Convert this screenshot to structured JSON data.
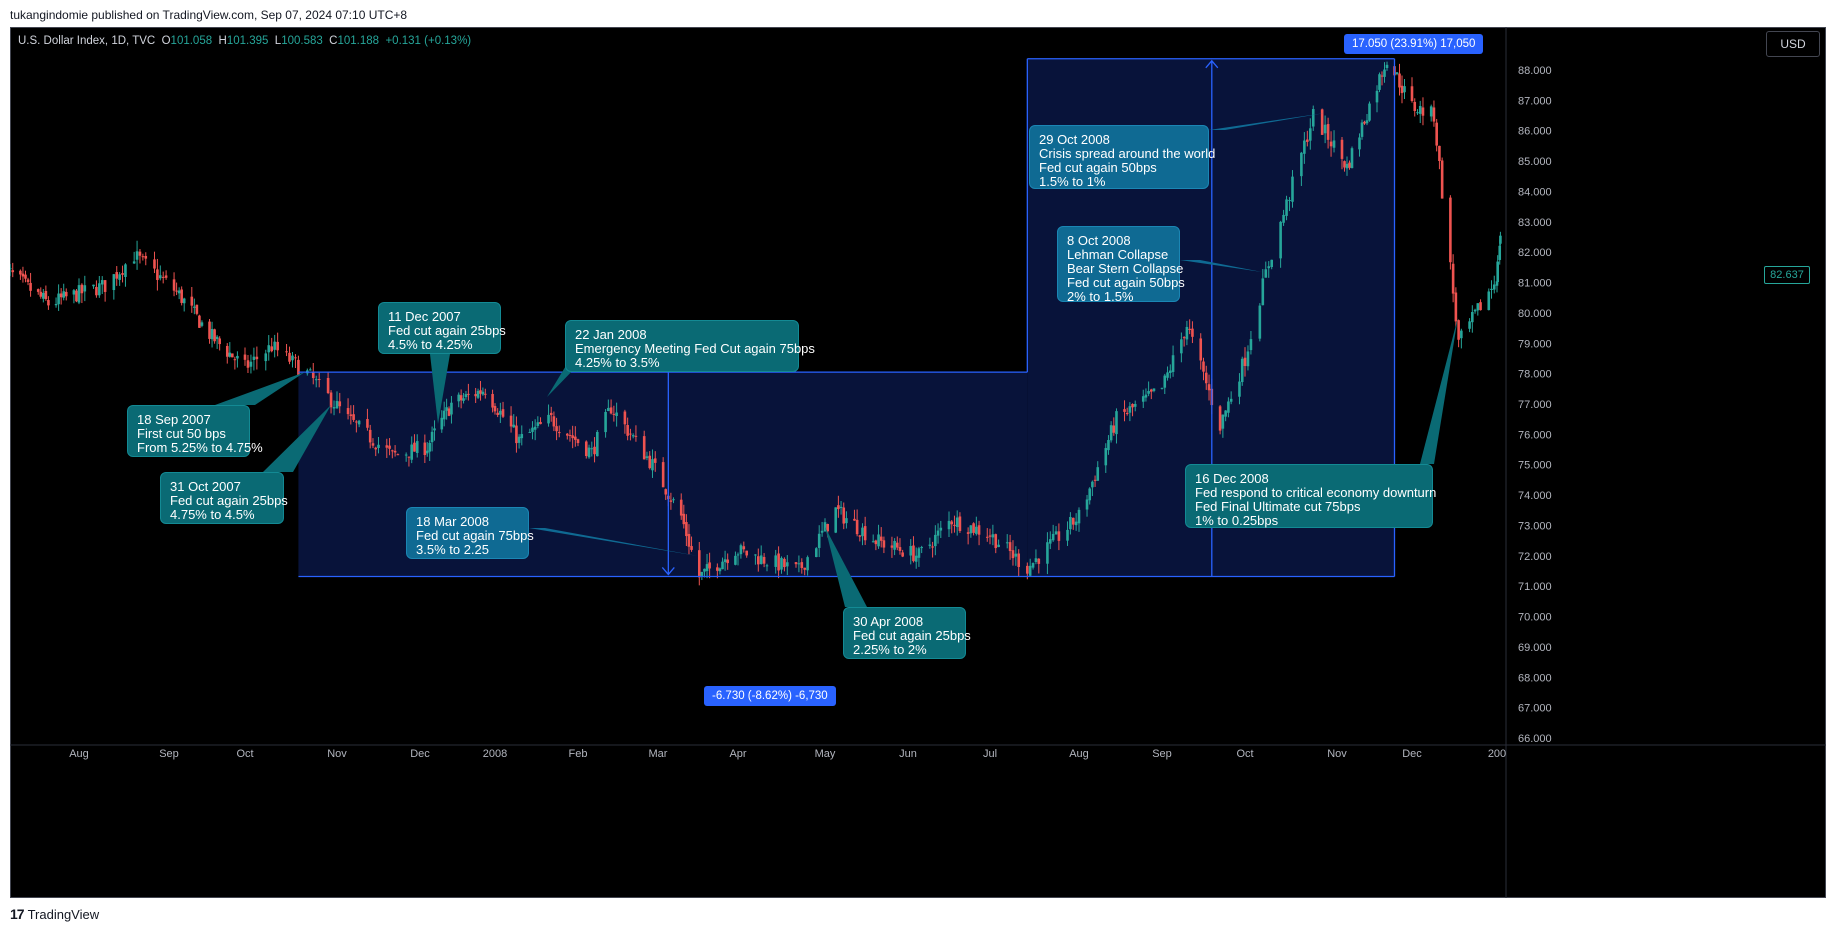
{
  "header": "tukangindomie published on TradingView.com, Sep 07, 2024 07:10 UTC+8",
  "footer": {
    "brand": "TradingView",
    "logo_text": "17"
  },
  "legend": {
    "symbol": "U.S. Dollar Index, 1D, TVC",
    "o_label": "O",
    "o": "101.058",
    "h_label": "H",
    "h": "101.395",
    "l_label": "L",
    "l": "100.583",
    "c_label": "C",
    "c": "101.188",
    "change": "+0.131 (+0.13%)"
  },
  "currency": "USD",
  "current_price": "82.637",
  "colors": {
    "up": "#26a69a",
    "down": "#ef5350",
    "measure": "#2962ff",
    "note_teal": "#0a6a74",
    "note_blue": "#0f6a93"
  },
  "chart_data": {
    "type": "candlestick",
    "ylim": [
      66,
      88.8
    ],
    "y_ticks": [
      "88.000",
      "87.000",
      "86.000",
      "85.000",
      "84.000",
      "83.000",
      "82.000",
      "81.000",
      "80.000",
      "79.000",
      "78.000",
      "77.000",
      "76.000",
      "75.000",
      "74.000",
      "73.000",
      "72.000",
      "71.000",
      "70.000",
      "69.000",
      "68.000",
      "67.000",
      "66.000"
    ],
    "x_ticks": [
      "Aug",
      "Sep",
      "Oct",
      "Nov",
      "Dec",
      "2008",
      "Feb",
      "Mar",
      "Apr",
      "May",
      "Jun",
      "Jul",
      "Aug",
      "Sep",
      "Oct",
      "Nov",
      "Dec",
      "200"
    ],
    "price_path": [
      {
        "date": "2007-07-02",
        "close": 81.5
      },
      {
        "date": "2007-07-20",
        "close": 80.3
      },
      {
        "date": "2007-08-10",
        "close": 80.9
      },
      {
        "date": "2007-08-20",
        "close": 81.9
      },
      {
        "date": "2007-09-05",
        "close": 80.6
      },
      {
        "date": "2007-09-18",
        "close": 79.2
      },
      {
        "date": "2007-10-01",
        "close": 78.2
      },
      {
        "date": "2007-10-10",
        "close": 78.9
      },
      {
        "date": "2007-10-22",
        "close": 78.0
      },
      {
        "date": "2007-11-05",
        "close": 76.5
      },
      {
        "date": "2007-11-21",
        "close": 75.3
      },
      {
        "date": "2007-12-04",
        "close": 75.6
      },
      {
        "date": "2007-12-14",
        "close": 77.0
      },
      {
        "date": "2007-12-28",
        "close": 77.5
      },
      {
        "date": "2008-01-10",
        "close": 75.8
      },
      {
        "date": "2008-01-22",
        "close": 76.5
      },
      {
        "date": "2008-02-06",
        "close": 75.4
      },
      {
        "date": "2008-02-13",
        "close": 76.9
      },
      {
        "date": "2008-02-28",
        "close": 75.0
      },
      {
        "date": "2008-03-10",
        "close": 73.3
      },
      {
        "date": "2008-03-17",
        "close": 71.3
      },
      {
        "date": "2008-03-31",
        "close": 72.2
      },
      {
        "date": "2008-04-22",
        "close": 71.5
      },
      {
        "date": "2008-05-05",
        "close": 73.5
      },
      {
        "date": "2008-05-20",
        "close": 72.5
      },
      {
        "date": "2008-06-05",
        "close": 72.0
      },
      {
        "date": "2008-06-17",
        "close": 73.2
      },
      {
        "date": "2008-07-01",
        "close": 72.7
      },
      {
        "date": "2008-07-14",
        "close": 71.6
      },
      {
        "date": "2008-08-01",
        "close": 73.3
      },
      {
        "date": "2008-08-15",
        "close": 76.5
      },
      {
        "date": "2008-09-01",
        "close": 77.5
      },
      {
        "date": "2008-09-10",
        "close": 79.6
      },
      {
        "date": "2008-09-22",
        "close": 76.3
      },
      {
        "date": "2008-10-01",
        "close": 78.5
      },
      {
        "date": "2008-10-08",
        "close": 81.3
      },
      {
        "date": "2008-10-24",
        "close": 86.5
      },
      {
        "date": "2008-11-05",
        "close": 84.8
      },
      {
        "date": "2008-11-21",
        "close": 88.4
      },
      {
        "date": "2008-12-01",
        "close": 86.8
      },
      {
        "date": "2008-12-09",
        "close": 86.5
      },
      {
        "date": "2008-12-18",
        "close": 79.0
      },
      {
        "date": "2008-12-31",
        "close": 81.0
      },
      {
        "date": "2009-01-06",
        "close": 82.6
      }
    ],
    "annotations": [
      {
        "id": "a1",
        "lines": [
          "18 Sep 2007",
          "First cut 50 bps",
          "From 5.25% to 4.75%"
        ]
      },
      {
        "id": "a2",
        "lines": [
          "31 Oct 2007",
          "Fed cut again 25bps",
          "4.75% to 4.5%"
        ]
      },
      {
        "id": "a3",
        "lines": [
          "11 Dec 2007",
          "Fed cut again 25bps",
          "4.5% to 4.25%"
        ]
      },
      {
        "id": "a4",
        "lines": [
          "22 Jan 2008",
          "Emergency Meeting Fed Cut again 75bps",
          "4.25% to 3.5%"
        ]
      },
      {
        "id": "a5",
        "lines": [
          "18 Mar 2008",
          "Fed cut again 75bps",
          "3.5% to 2.25"
        ]
      },
      {
        "id": "a6",
        "lines": [
          "30 Apr 2008",
          "Fed cut again 25bps",
          "2.25% to 2%"
        ]
      },
      {
        "id": "a7",
        "lines": [
          "8 Oct 2008",
          "Lehman Collapse",
          "Bear Stern Collapse",
          "Fed cut again 50bps",
          "2% to 1.5%"
        ]
      },
      {
        "id": "a8",
        "lines": [
          "29 Oct 2008",
          "Crisis spread around the world",
          "Fed cut again 50bps",
          "1.5% to 1%"
        ]
      },
      {
        "id": "a9",
        "lines": [
          "16 Dec 2008",
          "Fed respond to critical economy downturn",
          "Fed Final Ultimate cut 75bps",
          "1% to 0.25bps"
        ]
      }
    ],
    "measures": [
      {
        "label": "-6.730 (-8.62%) -6,730",
        "from": 78.05,
        "to": 71.32
      },
      {
        "label": "17.050 (23.91%) 17,050",
        "from": 71.32,
        "to": 88.37
      }
    ]
  }
}
